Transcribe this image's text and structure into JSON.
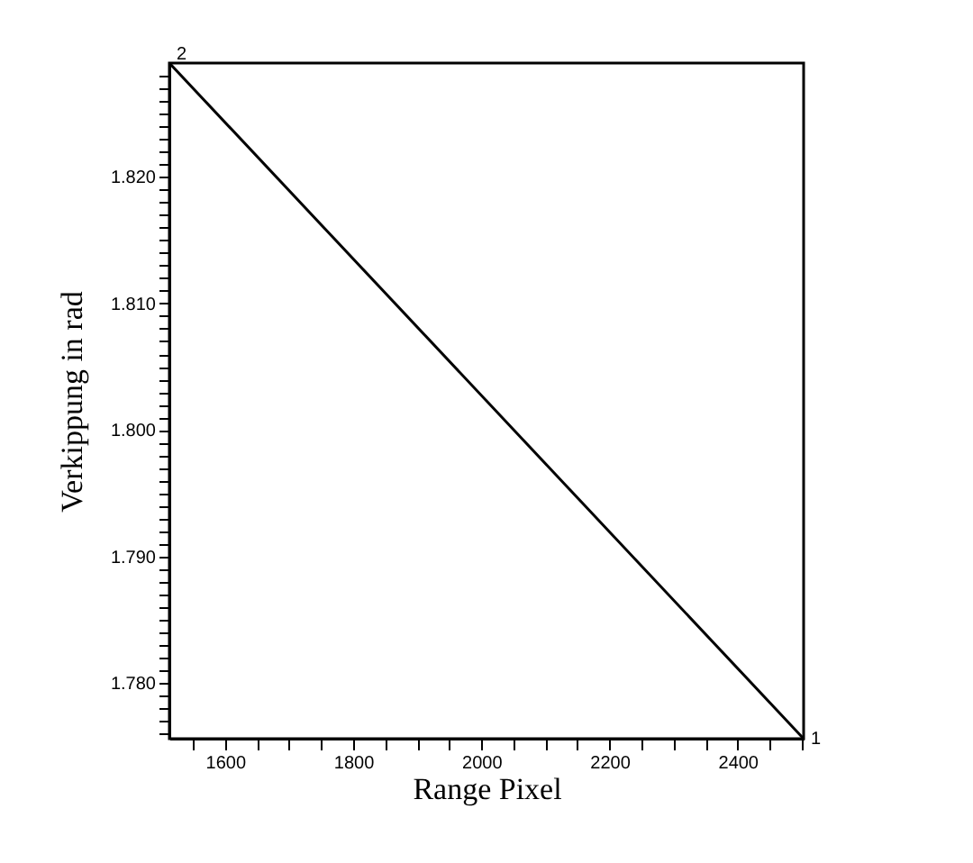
{
  "chart_data": {
    "type": "line",
    "xlabel": "Range Pixel",
    "ylabel": "Verkippung in rad",
    "x": [
      1513,
      2503
    ],
    "series": [
      {
        "color": "#000000",
        "values": [
          1.829,
          1.7756
        ]
      }
    ],
    "xlim": [
      1513,
      2503
    ],
    "ylim": [
      1.7756,
      1.829
    ],
    "xticks": [
      {
        "value": 1550,
        "label": null
      },
      1600,
      {
        "value": 1650,
        "label": null
      },
      {
        "value": 1700,
        "label": null
      },
      {
        "value": 1750,
        "label": null
      },
      1800,
      {
        "value": 1850,
        "label": null
      },
      {
        "value": 1900,
        "label": null
      },
      {
        "value": 1950,
        "label": null
      },
      2000,
      {
        "value": 2050,
        "label": null
      },
      {
        "value": 2100,
        "label": null
      },
      {
        "value": 2150,
        "label": null
      },
      2200,
      {
        "value": 2250,
        "label": null
      },
      {
        "value": 2300,
        "label": null
      },
      {
        "value": 2350,
        "label": null
      },
      2400,
      {
        "value": 2450,
        "label": null
      },
      {
        "value": 2500,
        "label": null
      }
    ],
    "yticks": [
      {
        "value": 1.776,
        "label": null
      },
      {
        "value": 1.777,
        "label": null
      },
      {
        "value": 1.778,
        "label": null
      },
      {
        "value": 1.779,
        "label": null
      },
      {
        "value": 1.78,
        "label": "1.780"
      },
      {
        "value": 1.781,
        "label": null
      },
      {
        "value": 1.782,
        "label": null
      },
      {
        "value": 1.783,
        "label": null
      },
      {
        "value": 1.784,
        "label": null
      },
      {
        "value": 1.785,
        "label": null
      },
      {
        "value": 1.786,
        "label": null
      },
      {
        "value": 1.787,
        "label": null
      },
      {
        "value": 1.788,
        "label": null
      },
      {
        "value": 1.789,
        "label": null
      },
      {
        "value": 1.79,
        "label": "1.790"
      },
      {
        "value": 1.791,
        "label": null
      },
      {
        "value": 1.792,
        "label": null
      },
      {
        "value": 1.793,
        "label": null
      },
      {
        "value": 1.794,
        "label": null
      },
      {
        "value": 1.795,
        "label": null
      },
      {
        "value": 1.796,
        "label": null
      },
      {
        "value": 1.797,
        "label": null
      },
      {
        "value": 1.798,
        "label": null
      },
      {
        "value": 1.799,
        "label": null
      },
      {
        "value": 1.8,
        "label": "1.800"
      },
      {
        "value": 1.801,
        "label": null
      },
      {
        "value": 1.802,
        "label": null
      },
      {
        "value": 1.803,
        "label": null
      },
      {
        "value": 1.804,
        "label": null
      },
      {
        "value": 1.805,
        "label": null
      },
      {
        "value": 1.806,
        "label": null
      },
      {
        "value": 1.807,
        "label": null
      },
      {
        "value": 1.808,
        "label": null
      },
      {
        "value": 1.809,
        "label": null
      },
      {
        "value": 1.81,
        "label": "1.810"
      },
      {
        "value": 1.811,
        "label": null
      },
      {
        "value": 1.812,
        "label": null
      },
      {
        "value": 1.813,
        "label": null
      },
      {
        "value": 1.814,
        "label": null
      },
      {
        "value": 1.815,
        "label": null
      },
      {
        "value": 1.816,
        "label": null
      },
      {
        "value": 1.817,
        "label": null
      },
      {
        "value": 1.818,
        "label": null
      },
      {
        "value": 1.819,
        "label": null
      },
      {
        "value": 1.82,
        "label": "1.820"
      },
      {
        "value": 1.821,
        "label": null
      },
      {
        "value": 1.822,
        "label": null
      },
      {
        "value": 1.823,
        "label": null
      },
      {
        "value": 1.824,
        "label": null
      },
      {
        "value": 1.825,
        "label": null
      },
      {
        "value": 1.826,
        "label": null
      },
      {
        "value": 1.827,
        "label": null
      },
      {
        "value": 1.828,
        "label": null
      }
    ],
    "annotations": [
      {
        "text": "2",
        "x": 1513,
        "y": 1.829
      },
      {
        "text": "1",
        "x": 2503,
        "y": 1.7756
      }
    ],
    "grid": false,
    "marker": "none",
    "line_style": "solid"
  }
}
